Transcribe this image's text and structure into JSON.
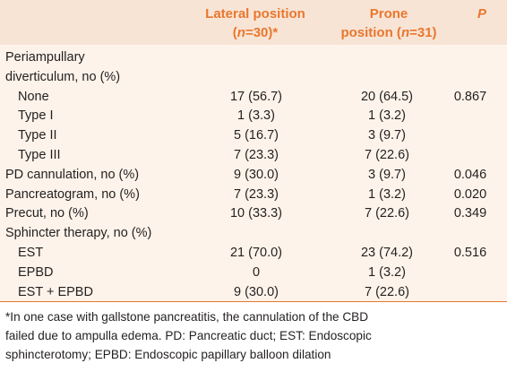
{
  "header": {
    "lateral_l1": "Lateral position",
    "lateral_l2": "(n=30)*",
    "prone_l1": "Prone",
    "prone_l2": "position (n=31)",
    "p_label": "P"
  },
  "rows": [
    {
      "label": "Periampullary",
      "lateral": "",
      "prone": "",
      "p": "",
      "indent": false
    },
    {
      "label": "diverticulum, no (%)",
      "lateral": "",
      "prone": "",
      "p": "",
      "indent": false
    },
    {
      "label": "None",
      "lateral": "17 (56.7)",
      "prone": "20 (64.5)",
      "p": "0.867",
      "indent": true
    },
    {
      "label": "Type I",
      "lateral": "1 (3.3)",
      "prone": "1 (3.2)",
      "p": "",
      "indent": true
    },
    {
      "label": "Type II",
      "lateral": "5 (16.7)",
      "prone": "3 (9.7)",
      "p": "",
      "indent": true
    },
    {
      "label": "Type III",
      "lateral": "7 (23.3)",
      "prone": "7 (22.6)",
      "p": "",
      "indent": true
    },
    {
      "label": "PD cannulation, no (%)",
      "lateral": "9 (30.0)",
      "prone": "3 (9.7)",
      "p": "0.046",
      "indent": false
    },
    {
      "label": "Pancreatogram, no (%)",
      "lateral": "7 (23.3)",
      "prone": "1 (3.2)",
      "p": "0.020",
      "indent": false
    },
    {
      "label": "Precut, no (%)",
      "lateral": "10 (33.3)",
      "prone": "7 (22.6)",
      "p": "0.349",
      "indent": false
    },
    {
      "label": "Sphincter therapy, no (%)",
      "lateral": "",
      "prone": "",
      "p": "",
      "indent": false
    },
    {
      "label": "EST",
      "lateral": "21 (70.0)",
      "prone": "23 (74.2)",
      "p": "0.516",
      "indent": true
    },
    {
      "label": "EPBD",
      "lateral": "0",
      "prone": "1 (3.2)",
      "p": "",
      "indent": true
    },
    {
      "label": "EST + EPBD",
      "lateral": "9 (30.0)",
      "prone": "7 (22.6)",
      "p": "",
      "indent": true
    }
  ],
  "footnote": {
    "line1": "*In one case with gallstone pancreatitis, the cannulation of the CBD",
    "line2": "failed due to ampulla edema. PD: Pancreatic duct; EST: Endoscopic",
    "line3": "sphincterotomy; EPBD: Endoscopic papillary balloon dilation"
  },
  "colors": {
    "header_bg": "#f8e4d5",
    "body_bg": "#fdf3ea",
    "header_text": "#e8772e",
    "rule": "#e8772e"
  }
}
